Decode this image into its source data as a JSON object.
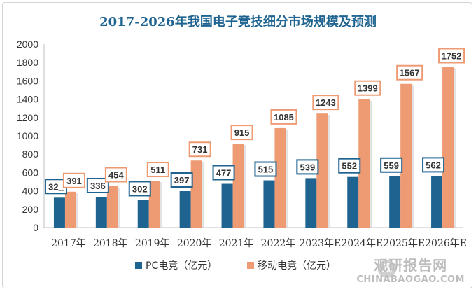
{
  "chart_data": {
    "type": "bar",
    "title": "2017-2026年我国电子竞技细分市场规模及预测",
    "categories": [
      "2017年",
      "2018年",
      "2019年",
      "2020年",
      "2021年",
      "2022年",
      "2023年E",
      "2024年E",
      "2025年E",
      "2026年E"
    ],
    "series": [
      {
        "name": "PC电竞（亿元）",
        "color": "#1f6490",
        "values": [
          326,
          336,
          302,
          397,
          477,
          515,
          539,
          552,
          559,
          562
        ]
      },
      {
        "name": "移动电竞（亿元）",
        "color": "#ee9b73",
        "values": [
          391,
          454,
          511,
          731,
          915,
          1085,
          1243,
          1399,
          1567,
          1752
        ]
      }
    ],
    "data_labels": [
      [
        "32_",
        "336",
        "302",
        "397",
        "477",
        "515",
        "539",
        "552",
        "559",
        "562"
      ],
      [
        "391",
        "454",
        "511",
        "731",
        "915",
        "1085",
        "1243",
        "1399",
        "1567",
        "1752"
      ]
    ],
    "yticks": [
      0,
      200,
      400,
      600,
      800,
      1000,
      1200,
      1400,
      1600,
      1800,
      2000
    ],
    "ylim": [
      0,
      2000
    ],
    "grid": false,
    "legend_position": "bottom",
    "colors": {
      "title": "#1f6490",
      "pc": "#1f6490",
      "mobile": "#ee9b73",
      "label_border_pc": "#1f6490",
      "label_border_mobile": "#ee9b73"
    }
  },
  "watermark": {
    "title": "观研报告网",
    "url": "CHINABAOGAO.COM",
    "badge": "观"
  }
}
